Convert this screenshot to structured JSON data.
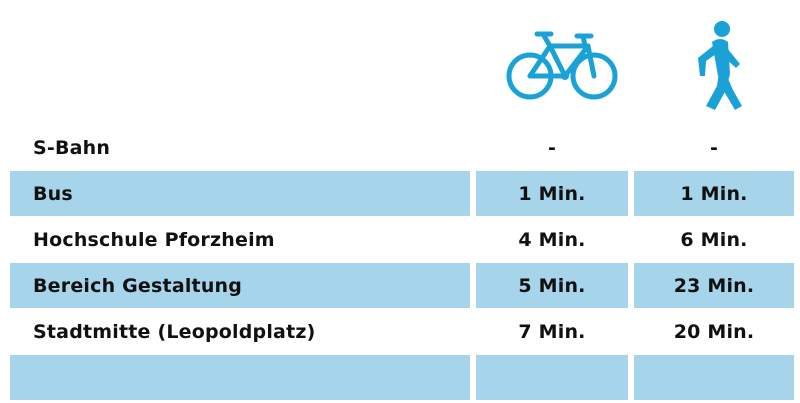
{
  "header": {
    "bike_icon": "bicycle-icon",
    "walk_icon": "pedestrian-walking-icon",
    "icon_color": "#1aa2d6",
    "shade_color": "#a6d4ea"
  },
  "rows": [
    {
      "label": "S-Bahn",
      "bike": "-",
      "walk": "-",
      "shaded": false
    },
    {
      "label": "Bus",
      "bike": "1 Min.",
      "walk": "1 Min.",
      "shaded": true
    },
    {
      "label": "Hochschule Pforzheim",
      "bike": "4 Min.",
      "walk": "6 Min.",
      "shaded": false
    },
    {
      "label": "Bereich Gestaltung",
      "bike": "5 Min.",
      "walk": "23 Min.",
      "shaded": true
    },
    {
      "label": "Stadtmitte (Leopoldplatz)",
      "bike": "7 Min.",
      "walk": "20 Min.",
      "shaded": false
    },
    {
      "label": "",
      "bike": "",
      "walk": "",
      "shaded": true
    }
  ]
}
